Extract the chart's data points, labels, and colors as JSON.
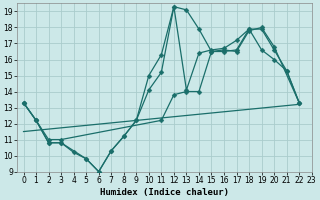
{
  "xlabel": "Humidex (Indice chaleur)",
  "bg_color": "#cce8e8",
  "grid_color": "#aacccc",
  "line_color": "#1a6e6a",
  "xlim": [
    -0.5,
    23
  ],
  "ylim": [
    9,
    19.5
  ],
  "xticks": [
    0,
    1,
    2,
    3,
    4,
    5,
    6,
    7,
    8,
    9,
    10,
    11,
    12,
    13,
    14,
    15,
    16,
    17,
    18,
    19,
    20,
    21,
    22,
    23
  ],
  "yticks": [
    9,
    10,
    11,
    12,
    13,
    14,
    15,
    16,
    17,
    18,
    19
  ],
  "line1_x": [
    0,
    1,
    2,
    3,
    4,
    5,
    6,
    7,
    8,
    9,
    10,
    11,
    12,
    13,
    14,
    15,
    16,
    17,
    18,
    19,
    20,
    21,
    22
  ],
  "line1_y": [
    13.3,
    12.2,
    10.8,
    10.8,
    10.2,
    9.8,
    9.0,
    10.3,
    11.2,
    12.2,
    15.0,
    16.3,
    19.3,
    19.1,
    17.9,
    16.5,
    16.5,
    16.6,
    17.9,
    17.9,
    16.6,
    15.3,
    13.3
  ],
  "line2_x": [
    0,
    1,
    2,
    3,
    5,
    6,
    7,
    8,
    9,
    10,
    11,
    12,
    13,
    14,
    15,
    16,
    17,
    18,
    19,
    20,
    21,
    22
  ],
  "line2_y": [
    13.3,
    12.2,
    10.8,
    10.8,
    9.8,
    9.0,
    10.3,
    11.2,
    12.2,
    14.1,
    15.2,
    19.3,
    14.1,
    16.4,
    16.6,
    16.7,
    17.2,
    17.9,
    16.6,
    16.0,
    15.3,
    13.3
  ],
  "line3_x": [
    0,
    1,
    2,
    3,
    11,
    12,
    13,
    14,
    15,
    16,
    17,
    18,
    19,
    20,
    22
  ],
  "line3_y": [
    13.3,
    12.2,
    11.0,
    11.0,
    12.2,
    13.8,
    14.0,
    14.0,
    16.5,
    16.6,
    16.5,
    17.8,
    18.0,
    16.8,
    13.3
  ],
  "ref_line_x": [
    0,
    22
  ],
  "ref_line_y": [
    11.5,
    13.2
  ]
}
